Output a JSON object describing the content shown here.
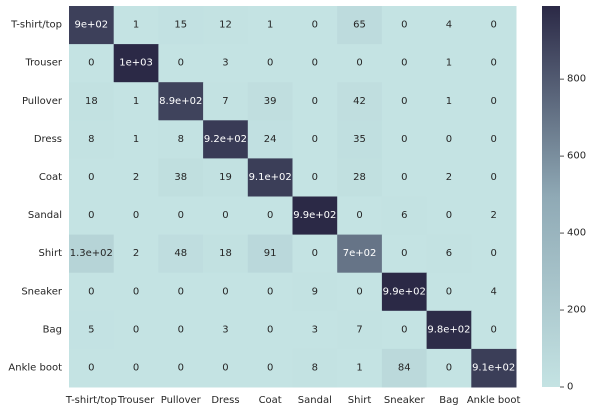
{
  "chart_data": {
    "type": "heatmap",
    "title": "",
    "xlabel": "",
    "ylabel": "",
    "row_labels": [
      "T-shirt/top",
      "Trouser",
      "Pullover",
      "Dress",
      "Coat",
      "Sandal",
      "Shirt",
      "Sneaker",
      "Bag",
      "Ankle boot"
    ],
    "col_labels": [
      "T-shirt/top",
      "Trouser",
      "Pullover",
      "Dress",
      "Coat",
      "Sandal",
      "Shirt",
      "Sneaker",
      "Bag",
      "Ankle boot"
    ],
    "values": [
      [
        900,
        1,
        15,
        12,
        1,
        0,
        65,
        0,
        4,
        0
      ],
      [
        0,
        1000,
        0,
        3,
        0,
        0,
        0,
        0,
        1,
        0
      ],
      [
        18,
        1,
        890,
        7,
        39,
        0,
        42,
        0,
        1,
        0
      ],
      [
        8,
        1,
        8,
        920,
        24,
        0,
        35,
        0,
        0,
        0
      ],
      [
        0,
        2,
        38,
        19,
        910,
        0,
        28,
        0,
        2,
        0
      ],
      [
        0,
        0,
        0,
        0,
        0,
        990,
        0,
        6,
        0,
        2
      ],
      [
        130,
        2,
        48,
        18,
        91,
        0,
        700,
        0,
        6,
        0
      ],
      [
        0,
        0,
        0,
        0,
        0,
        9,
        0,
        990,
        0,
        4
      ],
      [
        5,
        0,
        0,
        3,
        0,
        3,
        7,
        0,
        980,
        0
      ],
      [
        0,
        0,
        0,
        0,
        0,
        8,
        1,
        84,
        0,
        910
      ]
    ],
    "cell_labels": [
      [
        "9e+02",
        "1",
        "15",
        "12",
        "1",
        "0",
        "65",
        "0",
        "4",
        "0"
      ],
      [
        "0",
        "1e+03",
        "0",
        "3",
        "0",
        "0",
        "0",
        "0",
        "1",
        "0"
      ],
      [
        "18",
        "1",
        "8.9e+02",
        "7",
        "39",
        "0",
        "42",
        "0",
        "1",
        "0"
      ],
      [
        "8",
        "1",
        "8",
        "9.2e+02",
        "24",
        "0",
        "35",
        "0",
        "0",
        "0"
      ],
      [
        "0",
        "2",
        "38",
        "19",
        "9.1e+02",
        "0",
        "28",
        "0",
        "2",
        "0"
      ],
      [
        "0",
        "0",
        "0",
        "0",
        "0",
        "9.9e+02",
        "0",
        "6",
        "0",
        "2"
      ],
      [
        "1.3e+02",
        "2",
        "48",
        "18",
        "91",
        "0",
        "7e+02",
        "0",
        "6",
        "0"
      ],
      [
        "0",
        "0",
        "0",
        "0",
        "0",
        "9",
        "0",
        "9.9e+02",
        "0",
        "4"
      ],
      [
        "5",
        "0",
        "0",
        "3",
        "0",
        "3",
        "7",
        "0",
        "9.8e+02",
        "0"
      ],
      [
        "0",
        "0",
        "0",
        "0",
        "0",
        "8",
        "1",
        "84",
        "0",
        "9.1e+02"
      ]
    ],
    "colorbar": {
      "range": [
        0,
        990
      ],
      "ticks": [
        0,
        200,
        400,
        600,
        800
      ],
      "tick_labels": [
        "0",
        "200",
        "400",
        "600",
        "800"
      ],
      "color_low": "#c4e3e3",
      "color_high": "#2b2946"
    },
    "grid": false,
    "legend": "colorbar-right"
  }
}
